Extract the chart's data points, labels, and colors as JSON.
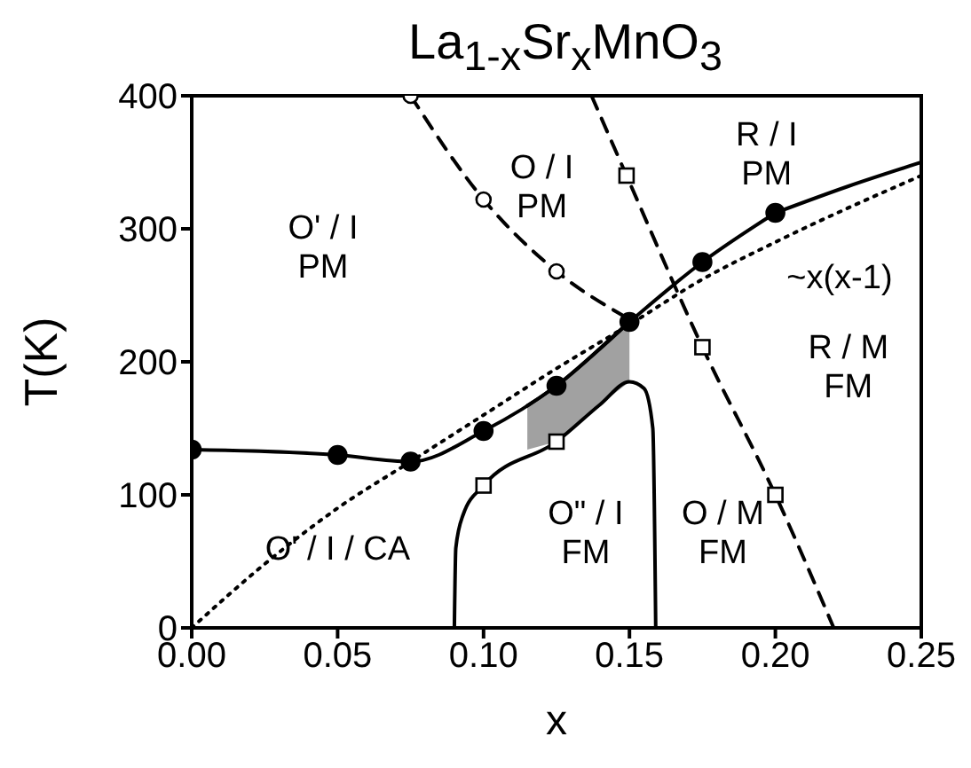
{
  "chart_data": {
    "type": "line",
    "title": "La$_{1-x}$Sr$_{x}$MnO$_{3}$",
    "xlabel": "x",
    "ylabel": "T(K)",
    "xlim": [
      0,
      0.25
    ],
    "xticks": [
      {
        "value": 0,
        "label": "0.00"
      },
      0.05,
      {
        "value": 0.1,
        "label": "0.10"
      },
      0.15,
      {
        "value": 0.2,
        "label": "0.20"
      },
      0.25
    ],
    "ylim": [
      0,
      400
    ],
    "yticks": [
      0,
      100,
      200,
      300,
      400
    ],
    "series": [
      {
        "color": "#000000",
        "line_style": "solid",
        "x": [
          0.115,
          0.125,
          0.14,
          0.15
        ],
        "values": [
          167,
          182,
          210,
          230
        ],
        "lower": [
          134,
          140,
          168,
          185
        ],
        "upper": [
          167,
          182,
          210,
          230
        ]
      },
      {
        "color": "#000000",
        "marker": "circle",
        "line_style": "solid",
        "x": [
          0,
          0.05,
          0.075,
          0.1,
          0.125,
          0.15,
          0.175,
          0.2
        ],
        "values": [
          134,
          130,
          125,
          148,
          182,
          230,
          275,
          312
        ]
      },
      {
        "color": "#000000",
        "marker": "none",
        "line_style": "solid",
        "x": [
          0.2,
          0.225,
          0.25
        ],
        "values": [
          312,
          332,
          350
        ]
      },
      {
        "color": "#000000",
        "marker": "none",
        "line_style": "dashed",
        "x": [
          0.075,
          0.1,
          0.125,
          0.15
        ],
        "values": [
          400,
          322,
          268,
          232
        ]
      },
      {
        "type": "scatter",
        "color": "#000000",
        "marker": "circle",
        "x": [
          0.075,
          0.1,
          0.125
        ],
        "values": [
          400,
          322,
          268
        ]
      },
      {
        "color": "#000000",
        "marker": "none",
        "line_style": "dashed",
        "x": [
          0.137,
          0.149,
          0.175,
          0.2,
          0.22
        ],
        "values": [
          400,
          340,
          211,
          100,
          0
        ]
      },
      {
        "type": "scatter",
        "color": "#000000",
        "marker": "square",
        "x": [
          0.149,
          0.175,
          0.2
        ],
        "values": [
          340,
          211,
          100
        ]
      },
      {
        "color": "#000000",
        "marker": "none",
        "line_style": "dotted",
        "x": [
          0,
          0.025,
          0.05,
          0.075,
          0.1,
          0.125,
          0.15,
          0.175,
          0.2,
          0.25
        ],
        "values": [
          0,
          48,
          90,
          125,
          160,
          195,
          228,
          262,
          290,
          340
        ]
      },
      {
        "color": "#000000",
        "marker": "none",
        "line_style": "solid",
        "x": [
          0.09,
          0.0905,
          0.093,
          0.1,
          0.125,
          0.14,
          0.15,
          0.155,
          0.158,
          0.159
        ],
        "values": [
          0,
          60,
          85,
          107,
          140,
          168,
          185,
          180,
          150,
          0
        ]
      },
      {
        "type": "scatter",
        "color": "#000000",
        "marker": "square",
        "x": [
          0.1,
          0.125
        ],
        "values": [
          107,
          140
        ]
      }
    ],
    "annotations": [
      "O' / I\nPM",
      "O / I\nPM",
      "R / I\nPM",
      "R / M\nFM",
      "O' / I / CA",
      "O\" / I\nFM",
      "O / M\nFM",
      "~x(x-1)"
    ]
  }
}
